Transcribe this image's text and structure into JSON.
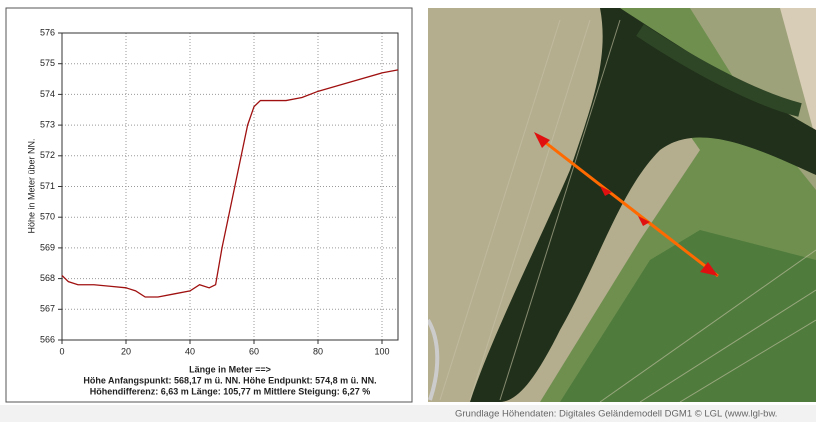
{
  "chart_data": {
    "type": "line",
    "y_label": "Höhe in Meter über NN.",
    "x_label": "Länge in Meter ==>",
    "info": [
      "Höhe Anfangspunkt: 568,17 m ü. NN. Höhe Endpunkt: 574,8 m ü. NN.",
      "Höhendifferenz: 6,63 m Länge: 105,77 m Mittlere Steigung: 6,27 %"
    ],
    "x": [
      0,
      2,
      5,
      10,
      15,
      20,
      23,
      26,
      30,
      35,
      40,
      43,
      46,
      48,
      50,
      52,
      55,
      58,
      60,
      62,
      70,
      75,
      80,
      90,
      100,
      105
    ],
    "series": [
      {
        "color": "#a01010",
        "values": [
          568.1,
          567.9,
          567.8,
          567.8,
          567.75,
          567.7,
          567.6,
          567.4,
          567.4,
          567.5,
          567.6,
          567.8,
          567.7,
          567.8,
          569,
          570,
          571.5,
          573,
          573.6,
          573.8,
          573.8,
          573.9,
          574.1,
          574.4,
          574.7,
          574.8
        ]
      }
    ],
    "xlim": [
      0,
      105
    ],
    "xticks": [
      0,
      20,
      40,
      60,
      80,
      100
    ],
    "ylim": [
      566,
      576
    ],
    "yticks": [
      566,
      567,
      568,
      569,
      570,
      571,
      572,
      573,
      574,
      575,
      576
    ],
    "grid": true
  },
  "footer": "Grundlage Höhendaten: Digitales Geländemodell DGM1 © LGL (www.lgl-bw."
}
